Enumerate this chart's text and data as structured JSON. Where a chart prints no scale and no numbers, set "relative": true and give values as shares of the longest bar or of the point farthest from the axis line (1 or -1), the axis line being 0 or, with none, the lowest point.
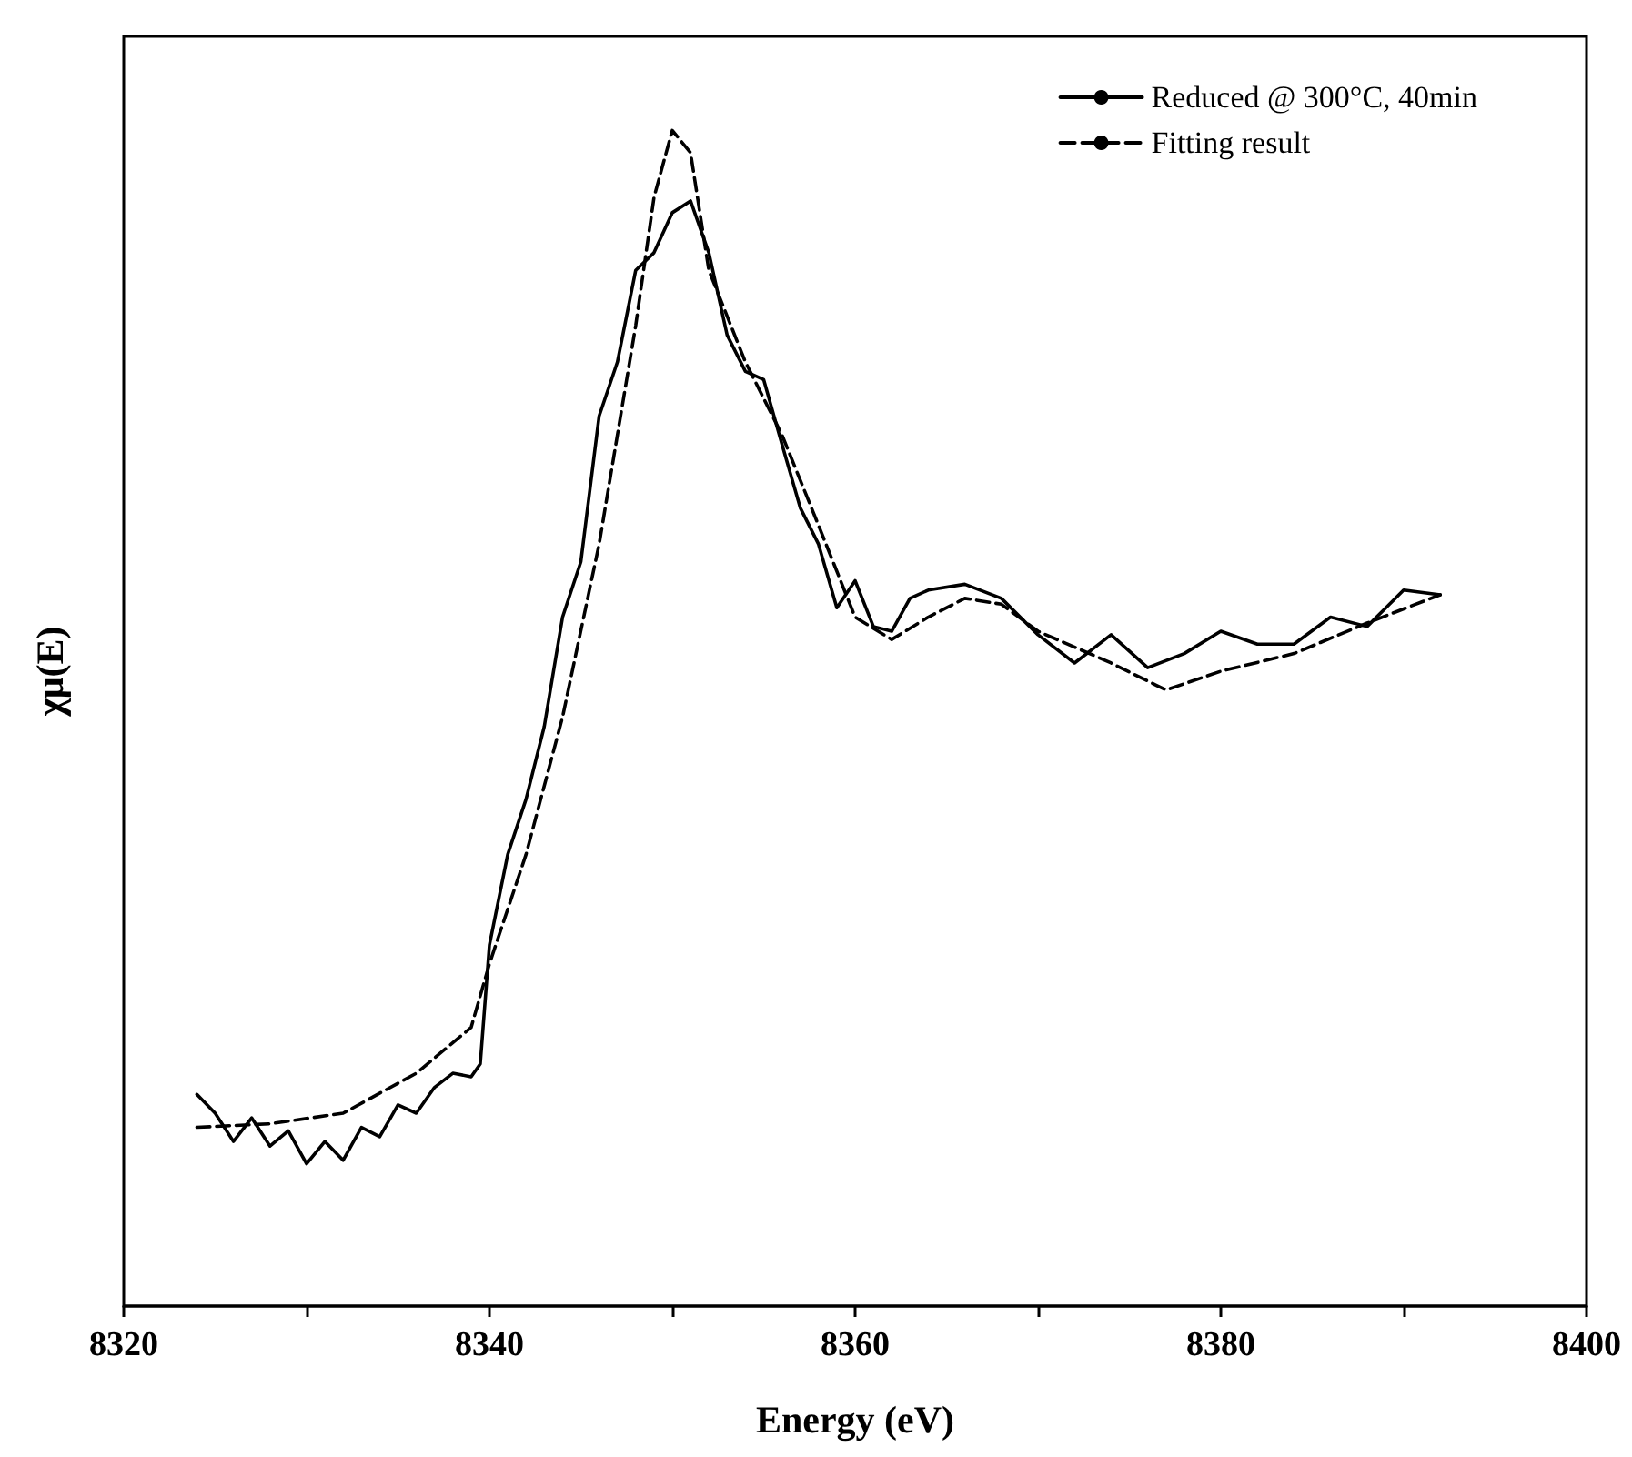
{
  "chart_data": {
    "type": "line",
    "xlabel": "Energy (eV)",
    "ylabel": "χμ(E)",
    "relative": true,
    "xlim": [
      8320,
      8400
    ],
    "xticks": [
      8320,
      {
        "value": 8330,
        "label": null
      },
      8340,
      {
        "value": 8350,
        "label": null
      },
      8360,
      {
        "value": 8370,
        "label": null
      },
      8380,
      {
        "value": 8390,
        "label": null
      },
      8400
    ],
    "legend": "top right",
    "grid": false,
    "marker": "none",
    "series": [
      {
        "name": "Reduced @ 300°C, 40min",
        "color": "#000000",
        "line_style": "solid",
        "x": [
          8324,
          8325,
          8326,
          8327,
          8328,
          8329,
          8330,
          8331,
          8332,
          8333,
          8334,
          8335,
          8336,
          8337,
          8338,
          8339,
          8339.5,
          8340,
          8341,
          8342,
          8343,
          8344,
          8345,
          8346,
          8347,
          8348,
          8349,
          8350,
          8351,
          8352,
          8353,
          8354,
          8355,
          8356,
          8357,
          8358,
          8359,
          8360,
          8361,
          8362,
          8363,
          8364,
          8366,
          8368,
          8370,
          8372,
          8374,
          8376,
          8378,
          8380,
          8382,
          8384,
          8386,
          8388,
          8390,
          8392
        ],
        "values": [
          0.18,
          0.164,
          0.14,
          0.16,
          0.136,
          0.149,
          0.121,
          0.14,
          0.124,
          0.152,
          0.144,
          0.171,
          0.164,
          0.186,
          0.198,
          0.195,
          0.206,
          0.307,
          0.384,
          0.431,
          0.493,
          0.586,
          0.633,
          0.757,
          0.803,
          0.881,
          0.896,
          0.93,
          0.94,
          0.896,
          0.826,
          0.795,
          0.788,
          0.733,
          0.679,
          0.648,
          0.594,
          0.617,
          0.578,
          0.574,
          0.602,
          0.609,
          0.614,
          0.602,
          0.571,
          0.547,
          0.571,
          0.543,
          0.555,
          0.574,
          0.563,
          0.563,
          0.586,
          0.578,
          0.609,
          0.605
        ]
      },
      {
        "name": "Fitting result",
        "color": "#000000",
        "line_style": "dashed",
        "x": [
          8324,
          8328,
          8332,
          8336,
          8339,
          8340,
          8342,
          8344,
          8346,
          8348,
          8349,
          8350,
          8351,
          8352,
          8354,
          8356,
          8358,
          8360,
          8362,
          8364,
          8366,
          8368,
          8370,
          8374,
          8377,
          8380,
          8384,
          8388,
          8392
        ],
        "values": [
          0.152,
          0.155,
          0.164,
          0.198,
          0.237,
          0.291,
          0.384,
          0.501,
          0.648,
          0.834,
          0.943,
          1,
          0.981,
          0.881,
          0.803,
          0.741,
          0.664,
          0.586,
          0.567,
          0.586,
          0.602,
          0.597,
          0.574,
          0.547,
          0.524,
          0.54,
          0.555,
          0.581,
          0.605
        ]
      }
    ]
  }
}
